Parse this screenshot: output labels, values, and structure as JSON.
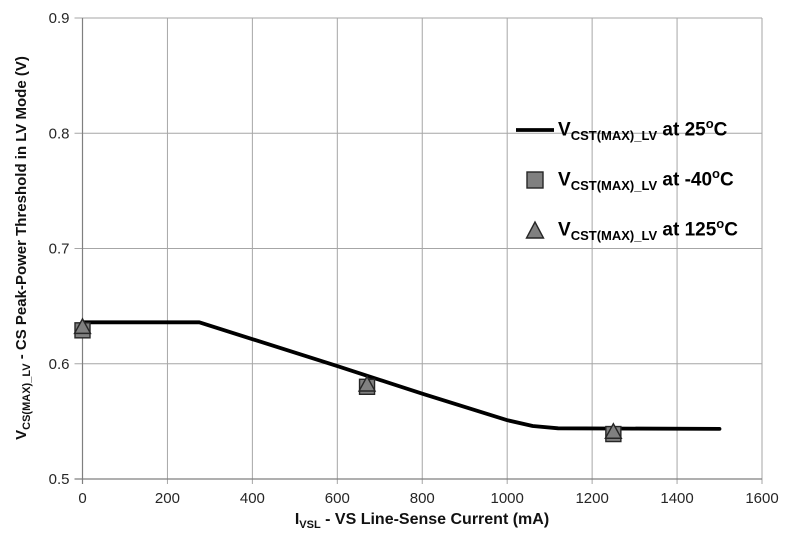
{
  "axes": {
    "x_title": {
      "prefix": "I",
      "sub": "VSL",
      "rest": " - VS Line-Sense Current (mA)"
    },
    "y_title": {
      "prefix": "V",
      "sub": "CS(MAX)_LV",
      "rest": " - CS Peak-Power Threshold in LV Mode (V)"
    }
  },
  "legend": {
    "items": [
      {
        "sample": "line",
        "prefix": "V",
        "sub": "CST(MAX)_LV",
        "mid": " at 25",
        "sup": "o",
        "end": "C"
      },
      {
        "sample": "square",
        "prefix": "V",
        "sub": "CST(MAX)_LV",
        "mid": " at -40",
        "sup": "o",
        "end": "C"
      },
      {
        "sample": "triangle",
        "prefix": "V",
        "sub": "CST(MAX)_LV",
        "mid": " at 125",
        "sup": "o",
        "end": "C"
      }
    ]
  },
  "chart_data": {
    "type": "line",
    "title": "",
    "xlabel": "IVSL - VS Line-Sense Current (mA)",
    "ylabel": "VCS(MAX)_LV - CS Peak-Power Threshold in LV Mode (V)",
    "xlim": [
      0,
      1600
    ],
    "ylim": [
      0.5,
      0.9
    ],
    "x_ticks": [
      0,
      200,
      400,
      600,
      800,
      1000,
      1200,
      1400,
      1600
    ],
    "x_tick_labels": [
      "0",
      "200",
      "400",
      "600",
      "800",
      "1000",
      "1200",
      "1400",
      "1600"
    ],
    "y_ticks": [
      0.5,
      0.6,
      0.7,
      0.8,
      0.9
    ],
    "y_tick_labels": [
      "0.5",
      "0.6",
      "0.7",
      "0.8",
      "0.9"
    ],
    "grid": true,
    "legend_position": "inside upper right",
    "colors": {
      "line": "#000000",
      "marker_fill": "#808080",
      "marker_stroke": "#262626",
      "grid": "#a6a6a6",
      "axis": "#7f7f7f",
      "tick_text": "#262626"
    },
    "series": [
      {
        "name": "VCST(MAX)_LV at 25C",
        "type": "line",
        "points": [
          [
            0,
            0.636
          ],
          [
            275,
            0.636
          ],
          [
            600,
            0.598
          ],
          [
            800,
            0.574
          ],
          [
            1000,
            0.551
          ],
          [
            1060,
            0.546
          ],
          [
            1120,
            0.544
          ],
          [
            1500,
            0.5435
          ]
        ]
      },
      {
        "name": "VCST(MAX)_LV at -40C",
        "type": "scatter",
        "marker": "square",
        "points": [
          [
            0,
            0.629
          ],
          [
            670,
            0.58
          ],
          [
            1250,
            0.539
          ]
        ]
      },
      {
        "name": "VCST(MAX)_LV at 125C",
        "type": "scatter",
        "marker": "triangle",
        "points": [
          [
            0,
            0.632
          ],
          [
            670,
            0.582
          ],
          [
            1250,
            0.541
          ]
        ]
      }
    ]
  }
}
